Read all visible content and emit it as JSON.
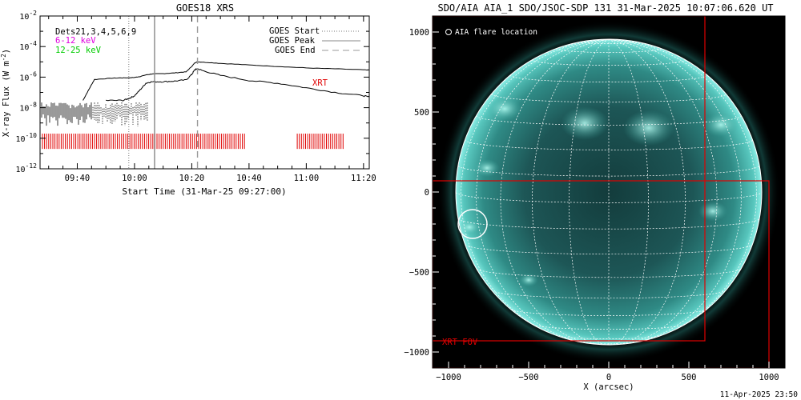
{
  "left_panel": {
    "title": "GOES18 XRS",
    "ylabel_prefix": "X-ray Flux (W m",
    "ylabel_exp": "-2",
    "ylabel_suffix": ")",
    "xlabel": "Start Time (31-Mar-25 09:27:00)",
    "dets_label": "Dets21,3,4,5,6,9",
    "band1_label": "6-12 keV",
    "band2_label": "12-25 keV",
    "xrt_label": "XRT",
    "colors": {
      "band1": "#e000e0",
      "band2": "#00cc00",
      "red": "#e00000",
      "grey": "#888888"
    }
  },
  "right_panel": {
    "title": "SDO/AIA AIA_1 SDO/JSOC-SDP 131 31-Mar-2025 10:07:06.620 UT",
    "flare_legend": "AIA flare location",
    "xrt_fov_label": "XRT FOV",
    "xlabel": "X (arcsec)",
    "timestamp": "11-Apr-2025 23:50",
    "colors": {
      "disk_center": "#1a4f4f",
      "limb": "#8ff0e8",
      "bg": "#000000",
      "grid": "#ffffff",
      "fov": "#e00000"
    }
  },
  "chart_data": [
    {
      "type": "line",
      "title": "GOES18 XRS",
      "xlabel": "Start Time (31-Mar-25 09:27:00)",
      "ylabel": "X-ray Flux (W m^-2)",
      "y_scale": "log",
      "ylim": [
        "1e-12",
        "1e-2"
      ],
      "xlim": [
        "09:27",
        "11:22"
      ],
      "x_ticks": [
        "09:40",
        "10:00",
        "10:20",
        "10:40",
        "11:00",
        "11:20"
      ],
      "y_ticks": [
        "10^-2",
        "10^-4",
        "10^-6",
        "10^-8",
        "10^-10",
        "10^-12"
      ],
      "legend": [
        "GOES Start",
        "GOES Peak",
        "GOES End"
      ],
      "legend_position": "top-right",
      "events": {
        "goes_start": "09:58",
        "goes_peak": "10:07",
        "goes_end": "10:22"
      },
      "series": [
        {
          "name": "long_channel",
          "x": [
            "09:42",
            "09:44",
            "09:46",
            "09:52",
            "09:56",
            "09:58",
            "10:00",
            "10:02",
            "10:04",
            "10:06",
            "10:10",
            "10:14",
            "10:18",
            "10:20",
            "10:21",
            "10:22",
            "10:24",
            "10:30",
            "10:40",
            "10:50",
            "11:00",
            "11:10",
            "11:20",
            "11:22"
          ],
          "y": [
            3e-08,
            1.5e-07,
            7e-07,
            8.5e-07,
            9e-07,
            9e-07,
            9.5e-07,
            1.1e-06,
            1.4e-06,
            1.6e-06,
            1.7e-06,
            1.9e-06,
            2.2e-06,
            5e-06,
            8.5e-06,
            1e-05,
            9.5e-06,
            8e-06,
            6.2e-06,
            5e-06,
            4e-06,
            3.5e-06,
            3e-06,
            2.9e-06
          ]
        },
        {
          "name": "short_channel",
          "x": [
            "09:50",
            "09:56",
            "09:58",
            "10:00",
            "10:02",
            "10:04",
            "10:06",
            "10:10",
            "10:14",
            "10:18",
            "10:20",
            "10:21",
            "10:22",
            "10:24",
            "10:30",
            "10:40",
            "10:50",
            "11:00",
            "11:10",
            "11:20",
            "11:22"
          ],
          "y": [
            3e-08,
            3e-08,
            4e-08,
            6e-08,
            1.5e-07,
            4e-07,
            5e-07,
            5e-07,
            5.5e-07,
            6.5e-07,
            1.5e-06,
            3e-06,
            3.5e-06,
            2.6e-06,
            1.3e-06,
            6e-07,
            4e-07,
            2e-07,
            1e-07,
            6e-08,
            5e-08
          ]
        }
      ],
      "xrt_segments": [
        [
          "09:27",
          "10:39"
        ],
        [
          "10:56",
          "11:13"
        ]
      ],
      "annotations": [
        "Dets21,3,4,5,6,9",
        "6-12 keV",
        "12-25 keV",
        "XRT"
      ]
    },
    {
      "type": "heatmap",
      "title": "SDO/AIA AIA_1 SDO/JSOC-SDP 131 31-Mar-2025 10:07:06.620 UT",
      "xlabel": "X (arcsec)",
      "xlim": [
        -1100,
        1100
      ],
      "ylim": [
        -1100,
        1100
      ],
      "x_ticks": [
        -1000,
        -500,
        0,
        500,
        1000
      ],
      "y_ticks": [
        1000,
        500,
        0,
        -500,
        -1000
      ],
      "solar_radius_arcsec": 955,
      "flare_location": [
        -850,
        -200
      ],
      "xrt_fov_boxes": [
        [
          -1100,
          600,
          -930,
          1100
        ],
        [
          -1100,
          1000,
          -1100,
          70
        ]
      ],
      "annotations": [
        "AIA flare location",
        "XRT FOV"
      ]
    }
  ]
}
